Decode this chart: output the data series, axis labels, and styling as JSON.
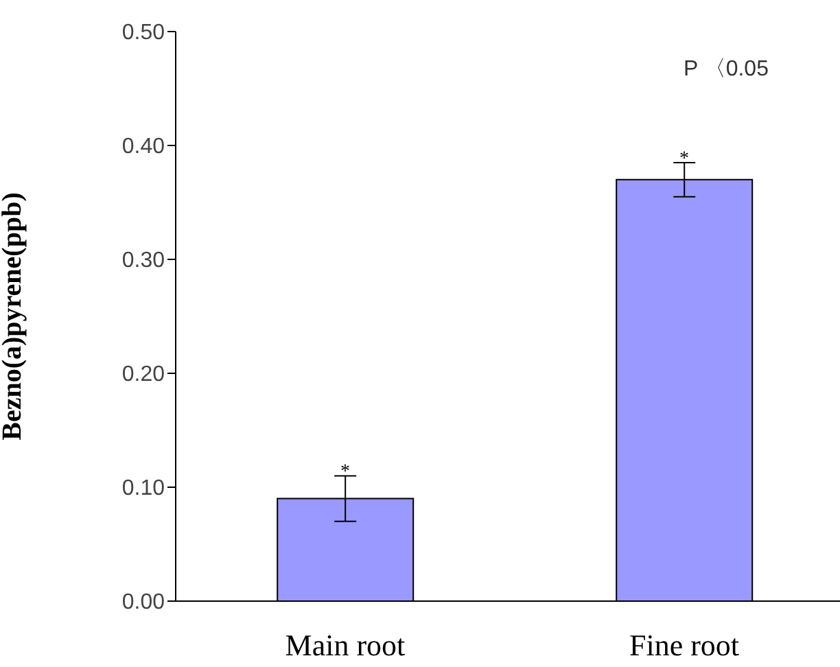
{
  "chart_data": {
    "type": "bar",
    "categories": [
      "Main root",
      "Fine root"
    ],
    "values": [
      0.09,
      0.37
    ],
    "errors": [
      0.02,
      0.015
    ],
    "color": "#9999ff",
    "ylabel": "Bezno(a)pyrene(ppb)",
    "ylim": [
      0,
      0.5
    ],
    "yticks": [
      {
        "value": 0,
        "label": "0.00"
      },
      {
        "value": 0.1,
        "label": "0.10"
      },
      {
        "value": 0.2,
        "label": "0.20"
      },
      {
        "value": 0.3,
        "label": "0.30"
      },
      {
        "value": 0.4,
        "label": "0.40"
      },
      {
        "value": 0.5,
        "label": "0.50"
      }
    ],
    "grid": false,
    "legend": false,
    "annotations": [
      {
        "text": "*",
        "x": "Main root",
        "y": 0.115
      },
      {
        "text": "*",
        "x": "Fine root",
        "y": 0.39
      },
      "P 〈0.05"
    ]
  }
}
